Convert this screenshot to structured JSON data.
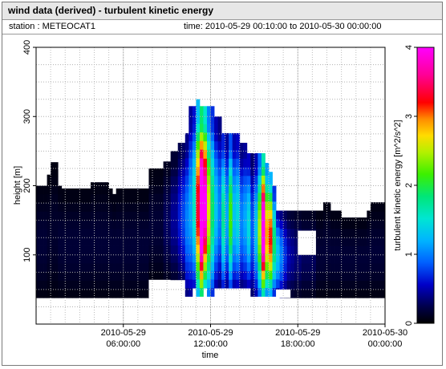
{
  "title": "wind data (derived) - turbulent kinetic energy",
  "station_label": "station : METEOCAT1",
  "time_range_label": "time: 2010-05-29 00:10:00 to 2010-05-30 00:00:00",
  "chart_data": {
    "type": "heatmap",
    "title": "wind data (derived) - turbulent kinetic energy",
    "xlabel": "time",
    "ylabel": "height [m]",
    "x_ticks": [
      {
        "t": 6,
        "line1": "2010-05-29",
        "line2": "06:00:00"
      },
      {
        "t": 12,
        "line1": "2010-05-29",
        "line2": "12:00:00"
      },
      {
        "t": 18,
        "line1": "2010-05-29",
        "line2": "18:00:00"
      },
      {
        "t": 24,
        "line1": "2010-05-30",
        "line2": "00:00:00"
      }
    ],
    "xlim_hours": [
      0,
      24
    ],
    "ylim": [
      0,
      400
    ],
    "y_ticks": [
      100,
      200,
      300,
      400
    ],
    "grid": true,
    "colorbar": {
      "label": "turbulent kinetic energy [m^2/s^2]",
      "range": [
        0,
        4
      ],
      "ticks": [
        0,
        1,
        2,
        3,
        4
      ]
    },
    "hour_step": 0.25,
    "height_step": 12.5,
    "profile_cells": [
      [
        0.0,
        38,
        200,
        0.12
      ],
      [
        0.25,
        38,
        200,
        0.12
      ],
      [
        0.5,
        38,
        200,
        0.12
      ],
      [
        0.75,
        38,
        216,
        0.1
      ],
      [
        1.0,
        38,
        234,
        0.1
      ],
      [
        1.25,
        38,
        234,
        0.1
      ],
      [
        1.5,
        38,
        200,
        0.12
      ],
      [
        1.75,
        38,
        196,
        0.12
      ],
      [
        2.0,
        38,
        196,
        0.12
      ],
      [
        2.25,
        38,
        196,
        0.12
      ],
      [
        2.5,
        38,
        196,
        0.12
      ],
      [
        2.75,
        38,
        196,
        0.12
      ],
      [
        3.0,
        38,
        196,
        0.12
      ],
      [
        3.25,
        38,
        196,
        0.12
      ],
      [
        3.5,
        38,
        196,
        0.12
      ],
      [
        3.75,
        38,
        205,
        0.12
      ],
      [
        4.0,
        38,
        205,
        0.12
      ],
      [
        4.25,
        38,
        205,
        0.12
      ],
      [
        4.5,
        38,
        205,
        0.12
      ],
      [
        4.75,
        38,
        205,
        0.12
      ],
      [
        5.0,
        38,
        196,
        0.12
      ],
      [
        5.25,
        38,
        188,
        0.12
      ],
      [
        5.5,
        38,
        196,
        0.12
      ],
      [
        5.75,
        38,
        196,
        0.12
      ],
      [
        6.0,
        38,
        196,
        0.12
      ],
      [
        6.25,
        38,
        196,
        0.12
      ],
      [
        6.5,
        38,
        196,
        0.12
      ],
      [
        6.75,
        38,
        196,
        0.12
      ],
      [
        7.0,
        38,
        196,
        0.12
      ],
      [
        7.25,
        38,
        196,
        0.12
      ],
      [
        7.5,
        38,
        196,
        0.12
      ],
      [
        7.75,
        64,
        225,
        0.12
      ],
      [
        8.0,
        64,
        225,
        0.12
      ],
      [
        8.25,
        64,
        225,
        0.12
      ],
      [
        8.5,
        64,
        225,
        0.12
      ],
      [
        8.75,
        64,
        235,
        0.2
      ],
      [
        9.0,
        64,
        235,
        0.2
      ],
      [
        9.25,
        64,
        250,
        0.3
      ],
      [
        9.5,
        64,
        250,
        0.3
      ],
      [
        9.75,
        64,
        262,
        0.45
      ],
      [
        10.0,
        64,
        262,
        0.55
      ],
      [
        10.25,
        40,
        276,
        0.7
      ],
      [
        10.5,
        40,
        315,
        0.8
      ],
      [
        10.75,
        52,
        315,
        1.1
      ],
      [
        11.0,
        40,
        325,
        2.3
      ],
      [
        11.25,
        40,
        315,
        3.4
      ],
      [
        11.5,
        52,
        315,
        2.8
      ],
      [
        11.75,
        40,
        315,
        1.8
      ],
      [
        12.0,
        40,
        315,
        1.3
      ],
      [
        12.25,
        52,
        300,
        0.9
      ],
      [
        12.5,
        52,
        300,
        0.7
      ],
      [
        12.75,
        52,
        276,
        1.2
      ],
      [
        13.0,
        52,
        276,
        0.8
      ],
      [
        13.25,
        52,
        276,
        1.5
      ],
      [
        13.5,
        52,
        276,
        0.9
      ],
      [
        13.75,
        52,
        276,
        1.0
      ],
      [
        14.0,
        52,
        262,
        0.7
      ],
      [
        14.25,
        52,
        262,
        0.8
      ],
      [
        14.5,
        52,
        247,
        1.0
      ],
      [
        14.75,
        40,
        247,
        0.6
      ],
      [
        15.0,
        40,
        247,
        0.9
      ],
      [
        15.25,
        40,
        247,
        1.7
      ],
      [
        15.5,
        40,
        247,
        3.0
      ],
      [
        15.75,
        40,
        233,
        2.0
      ],
      [
        16.0,
        40,
        220,
        2.2
      ],
      [
        16.25,
        40,
        200,
        1.3
      ],
      [
        16.5,
        40,
        164,
        0.9
      ],
      [
        16.75,
        38,
        164,
        0.7
      ],
      [
        17.0,
        38,
        164,
        0.5
      ],
      [
        17.25,
        38,
        164,
        0.35
      ],
      [
        17.5,
        38,
        164,
        0.3
      ],
      [
        17.75,
        38,
        164,
        0.25
      ],
      [
        18.0,
        38,
        164,
        0.25
      ],
      [
        18.25,
        38,
        164,
        0.2
      ],
      [
        18.5,
        38,
        164,
        0.2
      ],
      [
        18.75,
        38,
        164,
        0.2
      ],
      [
        19.0,
        38,
        164,
        0.2
      ],
      [
        19.25,
        38,
        164,
        0.12
      ],
      [
        19.5,
        38,
        164,
        0.12
      ],
      [
        19.75,
        38,
        176,
        0.12
      ],
      [
        20.0,
        38,
        176,
        0.12
      ],
      [
        20.25,
        38,
        164,
        0.12
      ],
      [
        20.5,
        38,
        164,
        0.12
      ],
      [
        20.75,
        38,
        164,
        0.12
      ],
      [
        21.0,
        38,
        154,
        0.12
      ],
      [
        21.25,
        38,
        154,
        0.12
      ],
      [
        21.5,
        38,
        154,
        0.12
      ],
      [
        21.75,
        38,
        154,
        0.12
      ],
      [
        22.0,
        38,
        154,
        0.12
      ],
      [
        22.25,
        38,
        154,
        0.12
      ],
      [
        22.5,
        38,
        154,
        0.12
      ],
      [
        22.75,
        38,
        164,
        0.12
      ],
      [
        23.0,
        38,
        176,
        0.12
      ],
      [
        23.25,
        38,
        176,
        0.12
      ],
      [
        23.5,
        38,
        176,
        0.12
      ],
      [
        23.75,
        38,
        176,
        0.12
      ]
    ],
    "gaps": [
      {
        "t0": 7.75,
        "t1": 9.25,
        "h0": 38,
        "h1": 64
      },
      {
        "t0": 18.0,
        "t1": 19.25,
        "h0": 100,
        "h1": 135
      },
      {
        "t0": 16.5,
        "t1": 17.5,
        "h0": 38,
        "h1": 50
      }
    ]
  }
}
